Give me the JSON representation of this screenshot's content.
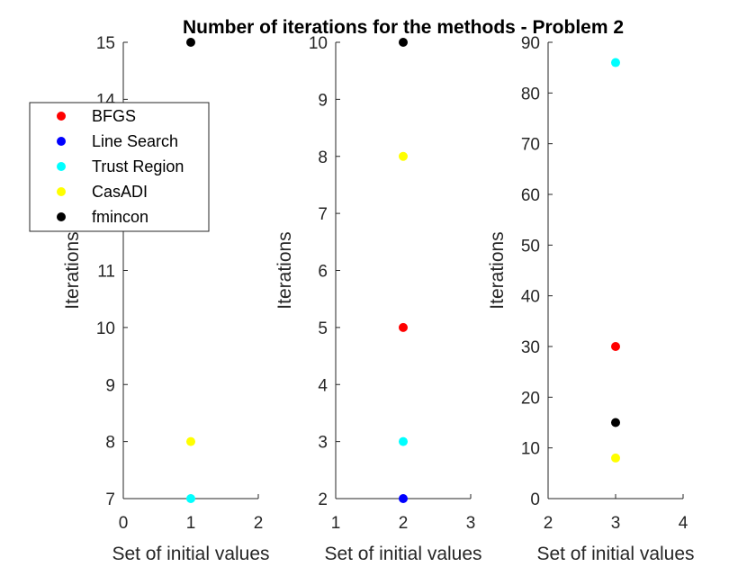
{
  "figure_title": "Number of iterations for the methods - Problem 2",
  "legend": [
    {
      "label": "BFGS",
      "color": "#ff0000"
    },
    {
      "label": "Line Search",
      "color": "#0000ff"
    },
    {
      "label": "Trust Region",
      "color": "#00ffff"
    },
    {
      "label": "CasADI",
      "color": "#ffff00"
    },
    {
      "label": "fmincon",
      "color": "#000000"
    }
  ],
  "chart_data": [
    {
      "type": "scatter",
      "xlabel": "Set of initial values",
      "ylabel": "Iterations",
      "xlim": [
        0,
        2
      ],
      "ylim": [
        7,
        15
      ],
      "xticks": [
        0,
        1,
        2
      ],
      "yticks": [
        7,
        8,
        9,
        10,
        11,
        12,
        13,
        14,
        15
      ],
      "series": [
        {
          "name": "Trust Region",
          "color": "#00ffff",
          "x": [
            1
          ],
          "y": [
            7
          ]
        },
        {
          "name": "CasADI",
          "color": "#ffff00",
          "x": [
            1
          ],
          "y": [
            8
          ]
        },
        {
          "name": "fmincon",
          "color": "#000000",
          "x": [
            1
          ],
          "y": [
            15
          ]
        }
      ]
    },
    {
      "type": "scatter",
      "xlabel": "Set of initial values",
      "ylabel": "Iterations",
      "xlim": [
        1,
        3
      ],
      "ylim": [
        2,
        10
      ],
      "xticks": [
        1,
        2,
        3
      ],
      "yticks": [
        2,
        3,
        4,
        5,
        6,
        7,
        8,
        9,
        10
      ],
      "series": [
        {
          "name": "BFGS",
          "color": "#ff0000",
          "x": [
            2
          ],
          "y": [
            5
          ]
        },
        {
          "name": "Line Search",
          "color": "#0000ff",
          "x": [
            2
          ],
          "y": [
            2
          ]
        },
        {
          "name": "Trust Region",
          "color": "#00ffff",
          "x": [
            2
          ],
          "y": [
            3
          ]
        },
        {
          "name": "CasADI",
          "color": "#ffff00",
          "x": [
            2
          ],
          "y": [
            8
          ]
        },
        {
          "name": "fmincon",
          "color": "#000000",
          "x": [
            2
          ],
          "y": [
            10
          ]
        }
      ]
    },
    {
      "type": "scatter",
      "xlabel": "Set of initial values",
      "ylabel": "Iterations",
      "xlim": [
        2,
        4
      ],
      "ylim": [
        0,
        90
      ],
      "xticks": [
        2,
        3,
        4
      ],
      "yticks": [
        0,
        10,
        20,
        30,
        40,
        50,
        60,
        70,
        80,
        90
      ],
      "series": [
        {
          "name": "BFGS",
          "color": "#ff0000",
          "x": [
            3
          ],
          "y": [
            30
          ]
        },
        {
          "name": "Trust Region",
          "color": "#00ffff",
          "x": [
            3
          ],
          "y": [
            86
          ]
        },
        {
          "name": "CasADI",
          "color": "#ffff00",
          "x": [
            3
          ],
          "y": [
            8
          ]
        },
        {
          "name": "fmincon",
          "color": "#000000",
          "x": [
            3
          ],
          "y": [
            15
          ]
        }
      ]
    }
  ]
}
